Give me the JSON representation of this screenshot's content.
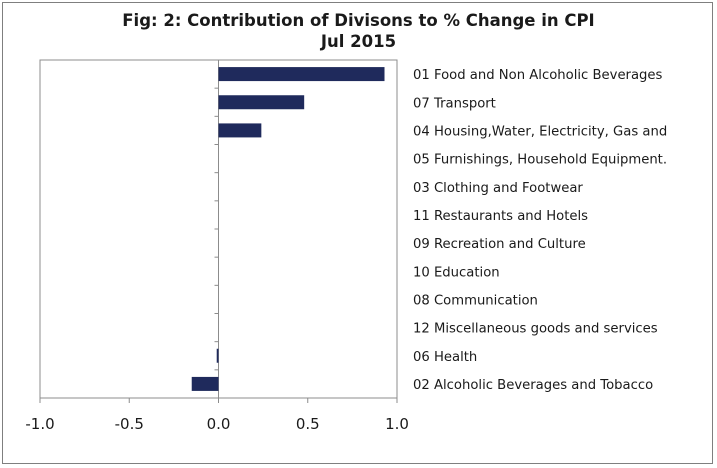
{
  "chart_data": {
    "type": "bar",
    "orientation": "horizontal",
    "title": "Fig: 2: Contribution of Divisons to % Change in CPI",
    "subtitle": "Jul 2015",
    "categories": [
      "01 Food and Non Alcoholic Beverages",
      "07 Transport",
      "04 Housing,Water, Electricity, Gas and",
      "05 Furnishings, Household Equipment.",
      "03 Clothing and Footwear",
      "11 Restaurants and Hotels",
      "09 Recreation and Culture",
      "10 Education",
      "08 Communication",
      "12 Miscellaneous goods and services",
      "06 Health",
      "02 Alcoholic Beverages and Tobacco"
    ],
    "values": [
      0.93,
      0.48,
      0.24,
      0.0,
      0.0,
      0.0,
      0.0,
      0.0,
      0.0,
      0.0,
      -0.01,
      -0.15
    ],
    "xlim": [
      -1.0,
      1.0
    ],
    "xticks": [
      "-1.0",
      "-0.5",
      "0.0",
      "0.5",
      "1.0"
    ],
    "xtick_values": [
      -1.0,
      -0.5,
      0.0,
      0.5,
      1.0
    ],
    "grid": false,
    "legend": "none",
    "bar_color": "#1f2a5c"
  }
}
